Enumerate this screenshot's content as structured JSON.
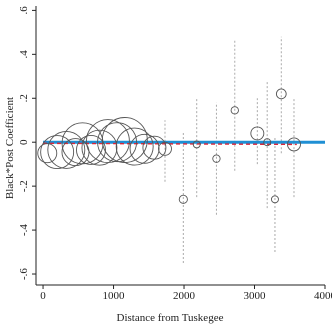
{
  "chart_data": {
    "type": "scatter",
    "title": "",
    "xlabel": "Distance from Tuskegee",
    "ylabel": "Black*Post Coefficient",
    "xlim": [
      -100,
      4000
    ],
    "ylim": [
      -0.65,
      0.62
    ],
    "xticks": [
      0,
      1000,
      2000,
      3000,
      4000
    ],
    "yticks": [
      -0.6,
      -0.4,
      -0.2,
      0,
      0.2,
      0.4,
      0.6
    ],
    "ytick_labels": [
      "-.6",
      "-.4",
      "-.2",
      "0",
      ".2",
      ".4",
      ".6"
    ],
    "grid": false,
    "colors": {
      "zero_line": "#1f8fd4",
      "fit_line": "#d9263a",
      "markers": "#555555",
      "ci_lines": "#aaaaaa"
    },
    "points": [
      {
        "x": 60,
        "y": -0.05,
        "weight": 0.35,
        "ci": null
      },
      {
        "x": 200,
        "y": -0.045,
        "weight": 0.7,
        "ci": null
      },
      {
        "x": 330,
        "y": -0.035,
        "weight": 0.8,
        "ci": null
      },
      {
        "x": 460,
        "y": -0.045,
        "weight": 0.55,
        "ci": null
      },
      {
        "x": 560,
        "y": -0.005,
        "weight": 0.9,
        "ci": null
      },
      {
        "x": 680,
        "y": -0.035,
        "weight": 0.6,
        "ci": null
      },
      {
        "x": 800,
        "y": -0.025,
        "weight": 0.75,
        "ci": null
      },
      {
        "x": 920,
        "y": 0.005,
        "weight": 0.95,
        "ci": null
      },
      {
        "x": 1050,
        "y": 0.0,
        "weight": 0.85,
        "ci": null
      },
      {
        "x": 1160,
        "y": 0.01,
        "weight": 1.0,
        "ci": null
      },
      {
        "x": 1300,
        "y": -0.02,
        "weight": 0.8,
        "ci": null
      },
      {
        "x": 1440,
        "y": -0.03,
        "weight": 0.6,
        "ci": null
      },
      {
        "x": 1580,
        "y": -0.025,
        "weight": 0.45,
        "ci": null
      },
      {
        "x": 1730,
        "y": -0.03,
        "weight": 0.2,
        "ci": [
          -0.18,
          0.1
        ]
      },
      {
        "x": 1990,
        "y": -0.26,
        "weight": 0.08,
        "ci": [
          -0.55,
          0.05
        ]
      },
      {
        "x": 2180,
        "y": -0.01,
        "weight": 0.05,
        "ci": [
          -0.25,
          0.2
        ]
      },
      {
        "x": 2460,
        "y": -0.075,
        "weight": 0.06,
        "ci": [
          -0.33,
          0.18
        ]
      },
      {
        "x": 2720,
        "y": 0.145,
        "weight": 0.06,
        "ci": [
          -0.13,
          0.47
        ]
      },
      {
        "x": 3040,
        "y": 0.04,
        "weight": 0.2,
        "ci": [
          -0.1,
          0.2
        ]
      },
      {
        "x": 3180,
        "y": 0.0,
        "weight": 0.05,
        "ci": [
          -0.3,
          0.28
        ]
      },
      {
        "x": 3290,
        "y": -0.26,
        "weight": 0.05,
        "ci": [
          -0.5,
          0.02
        ]
      },
      {
        "x": 3380,
        "y": 0.22,
        "weight": 0.12,
        "ci": [
          -0.05,
          0.48
        ]
      },
      {
        "x": 3560,
        "y": -0.01,
        "weight": 0.2,
        "ci": [
          -0.25,
          0.2
        ]
      }
    ],
    "fit_line": {
      "x": [
        0,
        3600
      ],
      "y": [
        -0.005,
        -0.01
      ]
    },
    "zero_line": {
      "y": 0,
      "x": [
        0,
        4000
      ]
    }
  }
}
